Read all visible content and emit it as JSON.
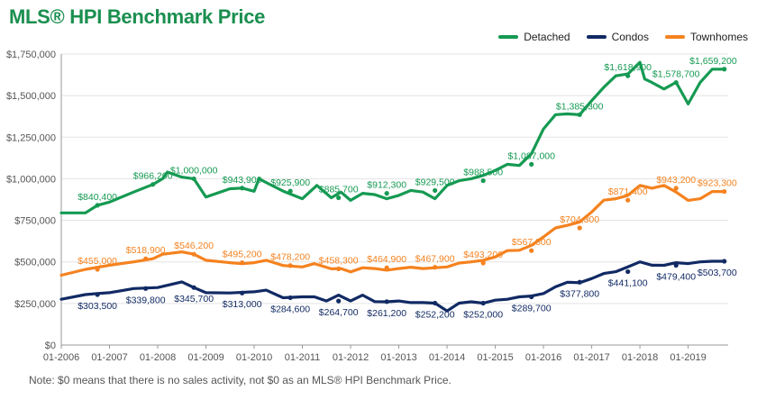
{
  "colors": {
    "detached": "#159a52",
    "condos": "#112a64",
    "townhomes": "#f5821f",
    "grid": "#e3e3e3",
    "axis": "#999999"
  },
  "chart_data": {
    "type": "line",
    "title": "MLS® HPI Benchmark Price",
    "note": "Note: $0 means that there is no sales activity, not $0 as an MLS® HPI Benchmark Price.",
    "ylim": [
      0,
      1750000
    ],
    "y_ticks": [
      {
        "value": 0,
        "label": "$0"
      },
      {
        "value": 250000,
        "label": "$250,000"
      },
      {
        "value": 500000,
        "label": "$500,000"
      },
      {
        "value": 750000,
        "label": "$750,000"
      },
      {
        "value": 1000000,
        "label": "$1,000,000"
      },
      {
        "value": 1250000,
        "label": "$1,250,000"
      },
      {
        "value": 1500000,
        "label": "$1,500,000"
      },
      {
        "value": 1750000,
        "label": "$1,750,000"
      }
    ],
    "xlim": [
      2006.0,
      2019.83
    ],
    "x_ticks": [
      {
        "value": 2006,
        "label": "01-2006"
      },
      {
        "value": 2007,
        "label": "01-2007"
      },
      {
        "value": 2008,
        "label": "01-2008"
      },
      {
        "value": 2009,
        "label": "01-2009"
      },
      {
        "value": 2010,
        "label": "01-2010"
      },
      {
        "value": 2011,
        "label": "01-2011"
      },
      {
        "value": 2012,
        "label": "01-2012"
      },
      {
        "value": 2013,
        "label": "01-2013"
      },
      {
        "value": 2014,
        "label": "01-2014"
      },
      {
        "value": 2015,
        "label": "01-2015"
      },
      {
        "value": 2016,
        "label": "01-2016"
      },
      {
        "value": 2017,
        "label": "01-2017"
      },
      {
        "value": 2018,
        "label": "01-2018"
      },
      {
        "value": 2019,
        "label": "01-2019"
      }
    ],
    "legend_position": "top-right",
    "series": [
      {
        "name": "Detached",
        "key": "detached",
        "points": [
          [
            2006.0,
            795000
          ],
          [
            2006.5,
            795000
          ],
          [
            2006.75,
            840400
          ],
          [
            2007.0,
            860000
          ],
          [
            2007.5,
            920000
          ],
          [
            2007.9,
            966200
          ],
          [
            2008.1,
            1000000
          ],
          [
            2008.2,
            1040000
          ],
          [
            2008.5,
            1010000
          ],
          [
            2008.75,
            1000000
          ],
          [
            2009.0,
            890000
          ],
          [
            2009.5,
            940000
          ],
          [
            2009.75,
            943900
          ],
          [
            2010.0,
            925000
          ],
          [
            2010.1,
            1000000
          ],
          [
            2010.3,
            970000
          ],
          [
            2010.6,
            925900
          ],
          [
            2011.0,
            880000
          ],
          [
            2011.3,
            960000
          ],
          [
            2011.6,
            885700
          ],
          [
            2011.8,
            920000
          ],
          [
            2012.0,
            870000
          ],
          [
            2012.25,
            912300
          ],
          [
            2012.5,
            905000
          ],
          [
            2012.75,
            880000
          ],
          [
            2013.0,
            900000
          ],
          [
            2013.25,
            929500
          ],
          [
            2013.5,
            920000
          ],
          [
            2013.75,
            880000
          ],
          [
            2014.0,
            960000
          ],
          [
            2014.25,
            988500
          ],
          [
            2014.5,
            1000000
          ],
          [
            2014.75,
            1020000
          ],
          [
            2015.0,
            1050000
          ],
          [
            2015.25,
            1087000
          ],
          [
            2015.5,
            1080000
          ],
          [
            2015.75,
            1150000
          ],
          [
            2016.0,
            1300000
          ],
          [
            2016.25,
            1385300
          ],
          [
            2016.5,
            1390000
          ],
          [
            2016.75,
            1385000
          ],
          [
            2017.0,
            1470000
          ],
          [
            2017.25,
            1550000
          ],
          [
            2017.5,
            1618900
          ],
          [
            2017.75,
            1630000
          ],
          [
            2018.0,
            1700000
          ],
          [
            2018.1,
            1600000
          ],
          [
            2018.25,
            1578700
          ],
          [
            2018.5,
            1540000
          ],
          [
            2018.75,
            1580000
          ],
          [
            2019.0,
            1450000
          ],
          [
            2019.25,
            1580000
          ],
          [
            2019.5,
            1659200
          ],
          [
            2019.75,
            1659200
          ]
        ]
      },
      {
        "name": "Condos",
        "key": "condos",
        "points": [
          [
            2006.0,
            275000
          ],
          [
            2006.5,
            303500
          ],
          [
            2006.75,
            310000
          ],
          [
            2007.0,
            315000
          ],
          [
            2007.5,
            339800
          ],
          [
            2008.0,
            345700
          ],
          [
            2008.5,
            380000
          ],
          [
            2008.75,
            345700
          ],
          [
            2009.0,
            315000
          ],
          [
            2009.5,
            313000
          ],
          [
            2010.0,
            320000
          ],
          [
            2010.25,
            330000
          ],
          [
            2010.6,
            284600
          ],
          [
            2011.0,
            290000
          ],
          [
            2011.25,
            290000
          ],
          [
            2011.5,
            264700
          ],
          [
            2011.75,
            300000
          ],
          [
            2012.0,
            264700
          ],
          [
            2012.25,
            300000
          ],
          [
            2012.5,
            261200
          ],
          [
            2012.75,
            260000
          ],
          [
            2013.0,
            265000
          ],
          [
            2013.25,
            255000
          ],
          [
            2013.5,
            255000
          ],
          [
            2013.75,
            252200
          ],
          [
            2014.0,
            205000
          ],
          [
            2014.25,
            252000
          ],
          [
            2014.5,
            260000
          ],
          [
            2014.75,
            252000
          ],
          [
            2015.0,
            270000
          ],
          [
            2015.25,
            275000
          ],
          [
            2015.5,
            289700
          ],
          [
            2015.75,
            295000
          ],
          [
            2016.0,
            310000
          ],
          [
            2016.25,
            350000
          ],
          [
            2016.5,
            377800
          ],
          [
            2016.75,
            375000
          ],
          [
            2017.0,
            400000
          ],
          [
            2017.25,
            430000
          ],
          [
            2017.5,
            441100
          ],
          [
            2017.75,
            470000
          ],
          [
            2018.0,
            500000
          ],
          [
            2018.25,
            480000
          ],
          [
            2018.5,
            479400
          ],
          [
            2018.75,
            495000
          ],
          [
            2019.0,
            490000
          ],
          [
            2019.25,
            500000
          ],
          [
            2019.5,
            503700
          ],
          [
            2019.75,
            503700
          ]
        ]
      },
      {
        "name": "Townhomes",
        "key": "townhomes",
        "points": [
          [
            2006.0,
            420000
          ],
          [
            2006.5,
            455000
          ],
          [
            2007.0,
            480000
          ],
          [
            2007.5,
            500000
          ],
          [
            2007.9,
            518900
          ],
          [
            2008.1,
            546200
          ],
          [
            2008.5,
            560000
          ],
          [
            2008.75,
            546200
          ],
          [
            2009.0,
            510000
          ],
          [
            2009.5,
            495200
          ],
          [
            2009.75,
            490000
          ],
          [
            2010.0,
            495000
          ],
          [
            2010.25,
            510000
          ],
          [
            2010.6,
            478200
          ],
          [
            2011.0,
            470000
          ],
          [
            2011.25,
            490000
          ],
          [
            2011.6,
            458300
          ],
          [
            2011.8,
            460000
          ],
          [
            2012.0,
            440000
          ],
          [
            2012.25,
            464900
          ],
          [
            2012.5,
            460000
          ],
          [
            2012.75,
            450000
          ],
          [
            2013.0,
            460000
          ],
          [
            2013.25,
            467900
          ],
          [
            2013.5,
            460000
          ],
          [
            2013.75,
            465000
          ],
          [
            2014.0,
            470000
          ],
          [
            2014.25,
            493200
          ],
          [
            2014.5,
            500000
          ],
          [
            2014.75,
            510000
          ],
          [
            2015.0,
            530000
          ],
          [
            2015.25,
            567800
          ],
          [
            2015.5,
            570000
          ],
          [
            2015.75,
            600000
          ],
          [
            2016.0,
            650000
          ],
          [
            2016.25,
            704300
          ],
          [
            2016.5,
            720000
          ],
          [
            2016.75,
            740000
          ],
          [
            2017.0,
            800000
          ],
          [
            2017.25,
            871400
          ],
          [
            2017.5,
            880000
          ],
          [
            2017.75,
            900000
          ],
          [
            2018.0,
            960000
          ],
          [
            2018.25,
            943200
          ],
          [
            2018.5,
            960000
          ],
          [
            2018.75,
            920000
          ],
          [
            2019.0,
            870000
          ],
          [
            2019.25,
            880000
          ],
          [
            2019.5,
            923300
          ],
          [
            2019.75,
            923300
          ]
        ]
      }
    ],
    "annotations": [
      {
        "series": "detached",
        "x": 2006.75,
        "y": 840400,
        "text": "$840,400"
      },
      {
        "series": "detached",
        "x": 2007.9,
        "y": 966200,
        "text": "$966,200"
      },
      {
        "series": "detached",
        "x": 2008.75,
        "y": 1000000,
        "text": "$1,000,000"
      },
      {
        "series": "detached",
        "x": 2009.75,
        "y": 943900,
        "text": "$943,900"
      },
      {
        "series": "detached",
        "x": 2010.75,
        "y": 925900,
        "text": "$925,900"
      },
      {
        "series": "detached",
        "x": 2011.75,
        "y": 885700,
        "text": "$885,700"
      },
      {
        "series": "detached",
        "x": 2012.75,
        "y": 912300,
        "text": "$912,300"
      },
      {
        "series": "detached",
        "x": 2013.75,
        "y": 929500,
        "text": "$929,500"
      },
      {
        "series": "detached",
        "x": 2014.75,
        "y": 988500,
        "text": "$988,500"
      },
      {
        "series": "detached",
        "x": 2015.75,
        "y": 1087000,
        "text": "$1,087,000"
      },
      {
        "series": "detached",
        "x": 2016.75,
        "y": 1385300,
        "text": "$1,385,300"
      },
      {
        "series": "detached",
        "x": 2017.75,
        "y": 1618900,
        "text": "$1,618,900"
      },
      {
        "series": "detached",
        "x": 2018.75,
        "y": 1578700,
        "text": "$1,578,700"
      },
      {
        "series": "detached",
        "x": 2019.75,
        "y": 1659200,
        "text": "$1,659,200"
      },
      {
        "series": "townhomes",
        "x": 2006.75,
        "y": 455000,
        "text": "$455,000"
      },
      {
        "series": "townhomes",
        "x": 2007.75,
        "y": 518900,
        "text": "$518,900"
      },
      {
        "series": "townhomes",
        "x": 2008.75,
        "y": 546200,
        "text": "$546,200"
      },
      {
        "series": "townhomes",
        "x": 2009.75,
        "y": 495200,
        "text": "$495,200"
      },
      {
        "series": "townhomes",
        "x": 2010.75,
        "y": 478200,
        "text": "$478,200"
      },
      {
        "series": "townhomes",
        "x": 2011.75,
        "y": 458300,
        "text": "$458,300"
      },
      {
        "series": "townhomes",
        "x": 2012.75,
        "y": 464900,
        "text": "$464,900"
      },
      {
        "series": "townhomes",
        "x": 2013.75,
        "y": 467900,
        "text": "$467,900"
      },
      {
        "series": "townhomes",
        "x": 2014.75,
        "y": 493200,
        "text": "$493,200"
      },
      {
        "series": "townhomes",
        "x": 2015.75,
        "y": 567800,
        "text": "$567,800"
      },
      {
        "series": "townhomes",
        "x": 2016.75,
        "y": 704300,
        "text": "$704,300"
      },
      {
        "series": "townhomes",
        "x": 2017.75,
        "y": 871400,
        "text": "$871,400"
      },
      {
        "series": "townhomes",
        "x": 2018.75,
        "y": 943200,
        "text": "$943,200"
      },
      {
        "series": "townhomes",
        "x": 2019.75,
        "y": 923300,
        "text": "$923,300"
      },
      {
        "series": "condos",
        "x": 2006.75,
        "y": 303500,
        "text": "$303,500"
      },
      {
        "series": "condos",
        "x": 2007.75,
        "y": 339800,
        "text": "$339,800"
      },
      {
        "series": "condos",
        "x": 2008.75,
        "y": 345700,
        "text": "$345,700"
      },
      {
        "series": "condos",
        "x": 2009.75,
        "y": 313000,
        "text": "$313,000"
      },
      {
        "series": "condos",
        "x": 2010.75,
        "y": 284600,
        "text": "$284,600"
      },
      {
        "series": "condos",
        "x": 2011.75,
        "y": 264700,
        "text": "$264,700"
      },
      {
        "series": "condos",
        "x": 2012.75,
        "y": 261200,
        "text": "$261,200"
      },
      {
        "series": "condos",
        "x": 2013.75,
        "y": 252200,
        "text": "$252,200"
      },
      {
        "series": "condos",
        "x": 2014.75,
        "y": 252000,
        "text": "$252,000"
      },
      {
        "series": "condos",
        "x": 2015.75,
        "y": 289700,
        "text": "$289,700"
      },
      {
        "series": "condos",
        "x": 2016.75,
        "y": 377800,
        "text": "$377,800"
      },
      {
        "series": "condos",
        "x": 2017.75,
        "y": 441100,
        "text": "$441,100"
      },
      {
        "series": "condos",
        "x": 2018.75,
        "y": 479400,
        "text": "$479,400"
      },
      {
        "series": "condos",
        "x": 2019.75,
        "y": 503700,
        "text": "$503,700"
      }
    ]
  }
}
